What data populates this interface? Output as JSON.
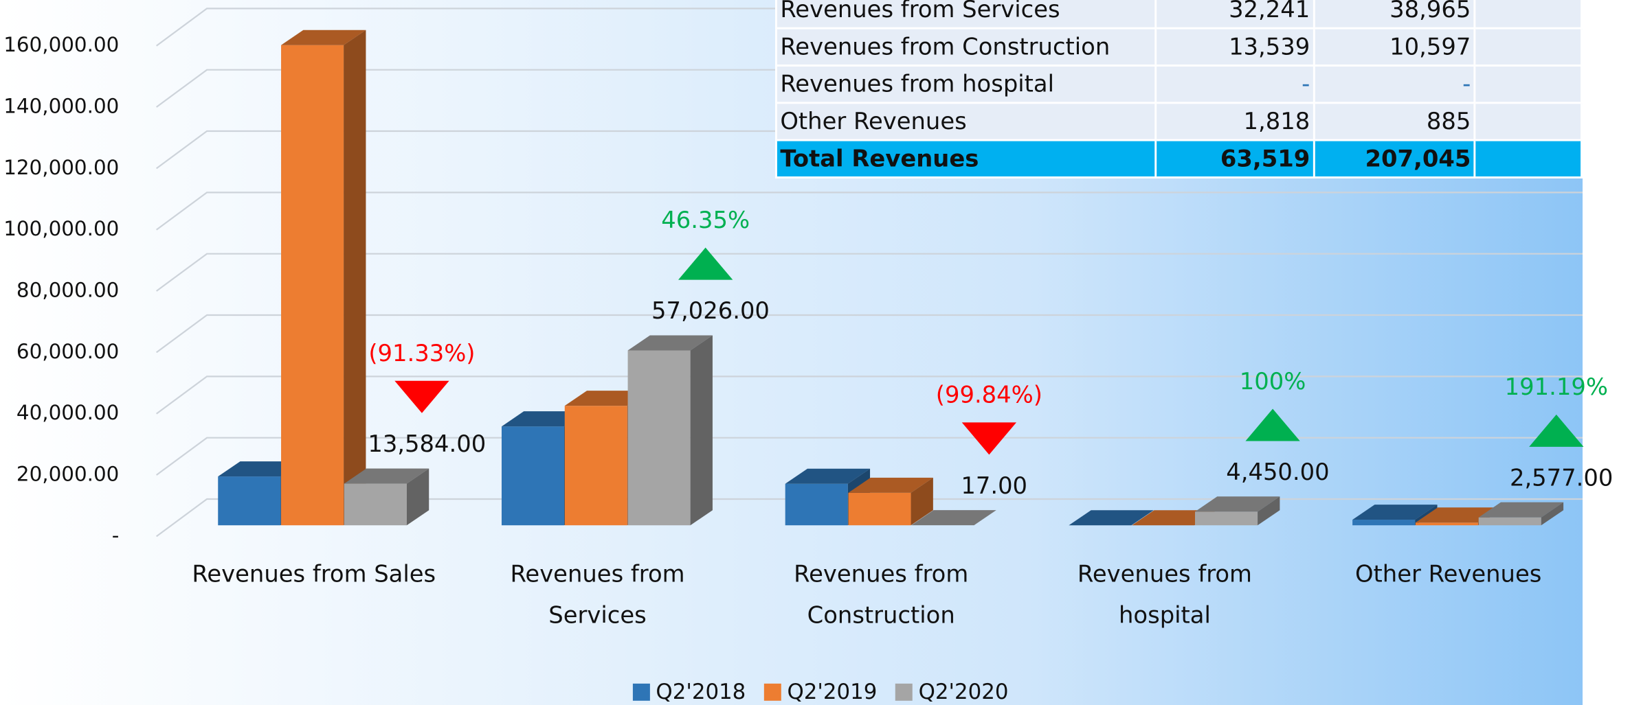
{
  "chart_data": {
    "type": "bar3d",
    "categories": [
      "Revenues from Sales",
      "Revenues from Services",
      "Revenues from Construction",
      "Revenues from hospital",
      "Other Revenues"
    ],
    "series": [
      {
        "name": "Q2'2018",
        "color": "#2e75b6",
        "values": [
          15921,
          32241,
          13539,
          0,
          1818
        ]
      },
      {
        "name": "Q2'2019",
        "color": "#ed7d31",
        "values": [
          156598,
          38965,
          10597,
          0,
          885
        ]
      },
      {
        "name": "Q2'2020",
        "color": "#a5a5a5",
        "values": [
          13584,
          57026,
          17,
          4450,
          2577
        ],
        "value_labels": [
          "13,584.00",
          "57,026.00",
          "17.00",
          "4,450.00",
          "2,577.00"
        ]
      }
    ],
    "annotations": [
      {
        "text": "(91.33%)",
        "direction": "down"
      },
      {
        "text": "46.35%",
        "direction": "up"
      },
      {
        "text": "(99.84%)",
        "direction": "down"
      },
      {
        "text": "100%",
        "direction": "up"
      },
      {
        "text": "191.19%",
        "direction": "up"
      }
    ],
    "ylim": [
      0,
      170000
    ],
    "yticks": [
      {
        "value": 0,
        "label": "-"
      },
      {
        "value": 20000,
        "label": "20,000.00"
      },
      {
        "value": 40000,
        "label": "40,000.00"
      },
      {
        "value": 60000,
        "label": "60,000.00"
      },
      {
        "value": 80000,
        "label": "80,000.00"
      },
      {
        "value": 100000,
        "label": "100,000.00"
      },
      {
        "value": 120000,
        "label": "120,000.00"
      },
      {
        "value": 140000,
        "label": "140,000.00"
      },
      {
        "value": 160000,
        "label": "160,000.00"
      }
    ],
    "grid": true
  },
  "table": {
    "rows": [
      [
        "Revenues from Services",
        "32,241",
        "38,965"
      ],
      [
        "Revenues from Construction",
        "13,539",
        "10,597"
      ],
      [
        "Revenues from hospital",
        "-",
        "-"
      ],
      [
        "Other Revenues",
        "1,818",
        "885"
      ],
      [
        "Total Revenues",
        "63,519",
        "207,045"
      ]
    ]
  }
}
